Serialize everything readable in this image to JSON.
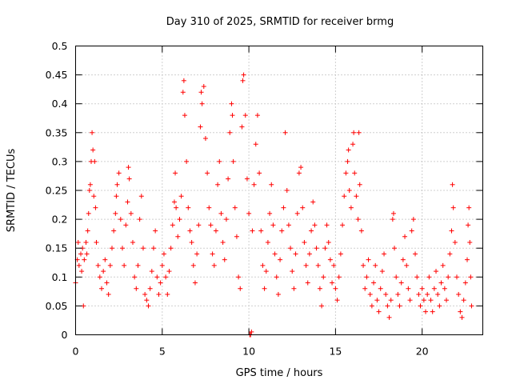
{
  "chart_data": {
    "type": "scatter",
    "title": "Day 310 of 2025, SRMTID for receiver brmg",
    "xlabel": "GPS time / hours",
    "ylabel": "SRMTID / TECUs",
    "xlim": [
      0,
      23.5
    ],
    "ylim": [
      0,
      0.5
    ],
    "xticks": [
      0,
      5,
      10,
      15,
      20
    ],
    "yticks": [
      0,
      0.05,
      0.1,
      0.15,
      0.2,
      0.25,
      0.3,
      0.35,
      0.4,
      0.45,
      0.5
    ],
    "xtick_labels": [
      "0",
      "5",
      "10",
      "15",
      "20"
    ],
    "ytick_labels": [
      "0",
      "0.05",
      "0.1",
      "0.15",
      "0.2",
      "0.25",
      "0.3",
      "0.35",
      "0.4",
      "0.45",
      "0.5"
    ],
    "grid": true,
    "marker": "+",
    "marker_color": "#ff0000",
    "series": [
      {
        "name": "SRMTID",
        "points": [
          [
            0.0,
            0.09
          ],
          [
            0.1,
            0.13
          ],
          [
            0.15,
            0.16
          ],
          [
            0.2,
            0.12
          ],
          [
            0.3,
            0.14
          ],
          [
            0.35,
            0.11
          ],
          [
            0.4,
            0.15
          ],
          [
            0.45,
            0.05
          ],
          [
            0.5,
            0.13
          ],
          [
            0.6,
            0.16
          ],
          [
            0.65,
            0.14
          ],
          [
            0.7,
            0.18
          ],
          [
            0.75,
            0.21
          ],
          [
            0.8,
            0.25
          ],
          [
            0.85,
            0.26
          ],
          [
            0.9,
            0.3
          ],
          [
            0.95,
            0.35
          ],
          [
            1.0,
            0.32
          ],
          [
            1.05,
            0.24
          ],
          [
            1.1,
            0.3
          ],
          [
            1.15,
            0.22
          ],
          [
            1.2,
            0.16
          ],
          [
            1.3,
            0.12
          ],
          [
            1.4,
            0.1
          ],
          [
            1.5,
            0.08
          ],
          [
            1.6,
            0.11
          ],
          [
            1.7,
            0.13
          ],
          [
            1.8,
            0.09
          ],
          [
            1.9,
            0.07
          ],
          [
            2.0,
            0.12
          ],
          [
            2.1,
            0.15
          ],
          [
            2.2,
            0.18
          ],
          [
            2.3,
            0.21
          ],
          [
            2.35,
            0.24
          ],
          [
            2.4,
            0.26
          ],
          [
            2.5,
            0.28
          ],
          [
            2.6,
            0.2
          ],
          [
            2.7,
            0.15
          ],
          [
            2.8,
            0.12
          ],
          [
            2.9,
            0.19
          ],
          [
            3.0,
            0.23
          ],
          [
            3.05,
            0.29
          ],
          [
            3.1,
            0.27
          ],
          [
            3.2,
            0.21
          ],
          [
            3.3,
            0.16
          ],
          [
            3.4,
            0.1
          ],
          [
            3.5,
            0.08
          ],
          [
            3.6,
            0.12
          ],
          [
            3.7,
            0.2
          ],
          [
            3.8,
            0.24
          ],
          [
            3.9,
            0.15
          ],
          [
            4.0,
            0.07
          ],
          [
            4.1,
            0.06
          ],
          [
            4.2,
            0.05
          ],
          [
            4.3,
            0.08
          ],
          [
            4.4,
            0.11
          ],
          [
            4.5,
            0.15
          ],
          [
            4.6,
            0.18
          ],
          [
            4.7,
            0.1
          ],
          [
            4.8,
            0.07
          ],
          [
            4.9,
            0.09
          ],
          [
            5.0,
            0.12
          ],
          [
            5.1,
            0.14
          ],
          [
            5.2,
            0.1
          ],
          [
            5.3,
            0.07
          ],
          [
            5.4,
            0.11
          ],
          [
            5.5,
            0.15
          ],
          [
            5.6,
            0.19
          ],
          [
            5.7,
            0.23
          ],
          [
            5.75,
            0.28
          ],
          [
            5.8,
            0.22
          ],
          [
            5.9,
            0.17
          ],
          [
            6.0,
            0.2
          ],
          [
            6.1,
            0.24
          ],
          [
            6.2,
            0.42
          ],
          [
            6.25,
            0.44
          ],
          [
            6.3,
            0.38
          ],
          [
            6.4,
            0.3
          ],
          [
            6.5,
            0.22
          ],
          [
            6.6,
            0.18
          ],
          [
            6.7,
            0.16
          ],
          [
            6.8,
            0.12
          ],
          [
            6.9,
            0.09
          ],
          [
            7.0,
            0.14
          ],
          [
            7.1,
            0.19
          ],
          [
            7.2,
            0.36
          ],
          [
            7.25,
            0.42
          ],
          [
            7.3,
            0.4
          ],
          [
            7.4,
            0.43
          ],
          [
            7.5,
            0.34
          ],
          [
            7.6,
            0.28
          ],
          [
            7.7,
            0.22
          ],
          [
            7.8,
            0.19
          ],
          [
            7.9,
            0.14
          ],
          [
            8.0,
            0.12
          ],
          [
            8.1,
            0.18
          ],
          [
            8.2,
            0.26
          ],
          [
            8.3,
            0.3
          ],
          [
            8.4,
            0.21
          ],
          [
            8.5,
            0.16
          ],
          [
            8.6,
            0.13
          ],
          [
            8.7,
            0.2
          ],
          [
            8.8,
            0.27
          ],
          [
            8.9,
            0.35
          ],
          [
            9.0,
            0.4
          ],
          [
            9.05,
            0.38
          ],
          [
            9.1,
            0.3
          ],
          [
            9.2,
            0.22
          ],
          [
            9.3,
            0.17
          ],
          [
            9.4,
            0.1
          ],
          [
            9.5,
            0.08
          ],
          [
            9.6,
            0.36
          ],
          [
            9.65,
            0.44
          ],
          [
            9.7,
            0.45
          ],
          [
            9.8,
            0.38
          ],
          [
            9.9,
            0.27
          ],
          [
            10.0,
            0.21
          ],
          [
            10.05,
            0.0
          ],
          [
            10.1,
            0.0
          ],
          [
            10.15,
            0.005
          ],
          [
            10.2,
            0.18
          ],
          [
            10.3,
            0.26
          ],
          [
            10.4,
            0.33
          ],
          [
            10.5,
            0.38
          ],
          [
            10.6,
            0.28
          ],
          [
            10.7,
            0.18
          ],
          [
            10.8,
            0.12
          ],
          [
            10.9,
            0.08
          ],
          [
            11.0,
            0.11
          ],
          [
            11.1,
            0.16
          ],
          [
            11.2,
            0.21
          ],
          [
            11.3,
            0.26
          ],
          [
            11.4,
            0.19
          ],
          [
            11.5,
            0.14
          ],
          [
            11.6,
            0.1
          ],
          [
            11.7,
            0.07
          ],
          [
            11.8,
            0.13
          ],
          [
            11.9,
            0.18
          ],
          [
            12.0,
            0.22
          ],
          [
            12.1,
            0.35
          ],
          [
            12.2,
            0.25
          ],
          [
            12.3,
            0.19
          ],
          [
            12.4,
            0.15
          ],
          [
            12.5,
            0.11
          ],
          [
            12.6,
            0.08
          ],
          [
            12.7,
            0.14
          ],
          [
            12.8,
            0.21
          ],
          [
            12.9,
            0.28
          ],
          [
            13.0,
            0.29
          ],
          [
            13.1,
            0.22
          ],
          [
            13.2,
            0.16
          ],
          [
            13.3,
            0.12
          ],
          [
            13.4,
            0.09
          ],
          [
            13.5,
            0.14
          ],
          [
            13.6,
            0.18
          ],
          [
            13.7,
            0.23
          ],
          [
            13.8,
            0.19
          ],
          [
            13.9,
            0.15
          ],
          [
            14.0,
            0.12
          ],
          [
            14.1,
            0.08
          ],
          [
            14.2,
            0.05
          ],
          [
            14.3,
            0.1
          ],
          [
            14.4,
            0.15
          ],
          [
            14.5,
            0.19
          ],
          [
            14.6,
            0.16
          ],
          [
            14.7,
            0.13
          ],
          [
            14.8,
            0.09
          ],
          [
            14.9,
            0.12
          ],
          [
            15.0,
            0.08
          ],
          [
            15.1,
            0.06
          ],
          [
            15.2,
            0.1
          ],
          [
            15.3,
            0.14
          ],
          [
            15.4,
            0.19
          ],
          [
            15.5,
            0.24
          ],
          [
            15.6,
            0.28
          ],
          [
            15.7,
            0.3
          ],
          [
            15.75,
            0.32
          ],
          [
            15.8,
            0.25
          ],
          [
            15.9,
            0.22
          ],
          [
            16.0,
            0.33
          ],
          [
            16.05,
            0.35
          ],
          [
            16.1,
            0.28
          ],
          [
            16.2,
            0.24
          ],
          [
            16.3,
            0.2
          ],
          [
            16.35,
            0.35
          ],
          [
            16.4,
            0.26
          ],
          [
            16.5,
            0.18
          ],
          [
            16.6,
            0.12
          ],
          [
            16.7,
            0.08
          ],
          [
            16.8,
            0.1
          ],
          [
            16.9,
            0.13
          ],
          [
            17.0,
            0.07
          ],
          [
            17.1,
            0.05
          ],
          [
            17.2,
            0.09
          ],
          [
            17.3,
            0.12
          ],
          [
            17.4,
            0.06
          ],
          [
            17.5,
            0.04
          ],
          [
            17.6,
            0.08
          ],
          [
            17.7,
            0.11
          ],
          [
            17.8,
            0.14
          ],
          [
            17.9,
            0.07
          ],
          [
            18.0,
            0.05
          ],
          [
            18.1,
            0.03
          ],
          [
            18.2,
            0.06
          ],
          [
            18.3,
            0.2
          ],
          [
            18.35,
            0.21
          ],
          [
            18.4,
            0.15
          ],
          [
            18.5,
            0.1
          ],
          [
            18.6,
            0.07
          ],
          [
            18.7,
            0.05
          ],
          [
            18.8,
            0.09
          ],
          [
            18.9,
            0.13
          ],
          [
            19.0,
            0.17
          ],
          [
            19.1,
            0.12
          ],
          [
            19.2,
            0.08
          ],
          [
            19.3,
            0.06
          ],
          [
            19.4,
            0.18
          ],
          [
            19.5,
            0.2
          ],
          [
            19.6,
            0.14
          ],
          [
            19.7,
            0.1
          ],
          [
            19.8,
            0.07
          ],
          [
            19.9,
            0.05
          ],
          [
            20.0,
            0.08
          ],
          [
            20.1,
            0.06
          ],
          [
            20.2,
            0.04
          ],
          [
            20.3,
            0.07
          ],
          [
            20.4,
            0.1
          ],
          [
            20.5,
            0.06
          ],
          [
            20.6,
            0.04
          ],
          [
            20.7,
            0.08
          ],
          [
            20.8,
            0.11
          ],
          [
            20.9,
            0.07
          ],
          [
            21.0,
            0.05
          ],
          [
            21.1,
            0.09
          ],
          [
            21.2,
            0.12
          ],
          [
            21.3,
            0.08
          ],
          [
            21.4,
            0.06
          ],
          [
            21.5,
            0.1
          ],
          [
            21.6,
            0.14
          ],
          [
            21.7,
            0.18
          ],
          [
            21.75,
            0.26
          ],
          [
            21.8,
            0.22
          ],
          [
            21.9,
            0.16
          ],
          [
            22.0,
            0.1
          ],
          [
            22.1,
            0.07
          ],
          [
            22.2,
            0.04
          ],
          [
            22.3,
            0.03
          ],
          [
            22.4,
            0.06
          ],
          [
            22.5,
            0.09
          ],
          [
            22.6,
            0.13
          ],
          [
            22.65,
            0.19
          ],
          [
            22.7,
            0.22
          ],
          [
            22.75,
            0.16
          ],
          [
            22.8,
            0.1
          ],
          [
            22.85,
            0.05
          ]
        ]
      }
    ]
  }
}
